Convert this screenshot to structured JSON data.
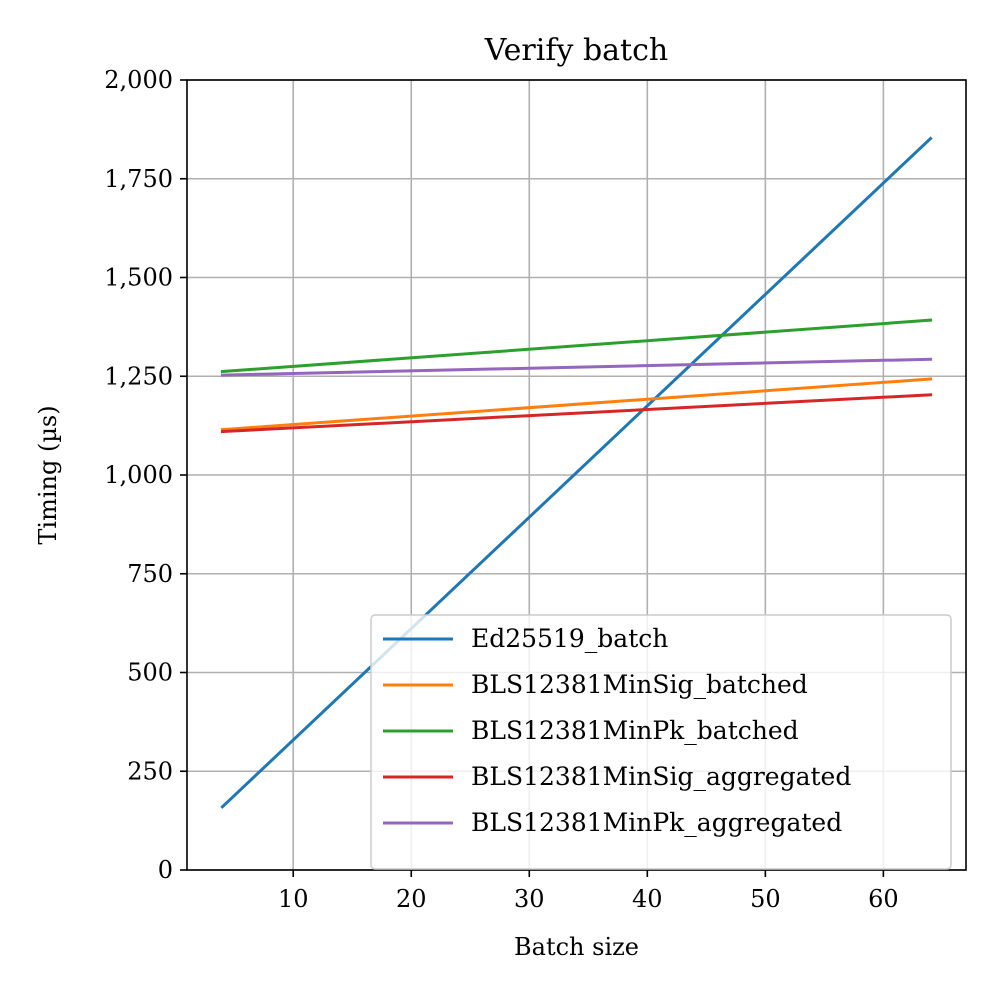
{
  "chart_data": {
    "type": "line",
    "title": "Verify batch",
    "xlabel": "Batch size",
    "ylabel": "Timing (µs)",
    "xlim": [
      1,
      67
    ],
    "ylim": [
      0,
      2000
    ],
    "xticks": [
      10,
      20,
      30,
      40,
      50,
      60
    ],
    "yticks": [
      0,
      250,
      500,
      750,
      1000,
      1250,
      1500,
      1750,
      2000
    ],
    "ytick_labels": [
      "0",
      "250",
      "500",
      "750",
      "1,000",
      "1,250",
      "1,500",
      "1,750",
      "2,000"
    ],
    "grid": true,
    "legend_position": "lower-right",
    "series": [
      {
        "name": "Ed25519_batch",
        "color": "#1f77b4",
        "x": [
          4,
          64
        ],
        "y": [
          160,
          1852
        ]
      },
      {
        "name": "BLS12381MinSig_batched",
        "color": "#ff7f0e",
        "x": [
          4,
          64
        ],
        "y": [
          1115,
          1243
        ]
      },
      {
        "name": "BLS12381MinPk_batched",
        "color": "#2ca02c",
        "x": [
          4,
          64
        ],
        "y": [
          1262,
          1392
        ]
      },
      {
        "name": "BLS12381MinSig_aggregated",
        "color": "#d62728",
        "x": [
          4,
          64
        ],
        "y": [
          1110,
          1203
        ]
      },
      {
        "name": "BLS12381MinPk_aggregated",
        "color": "#9467bd",
        "x": [
          4,
          64
        ],
        "y": [
          1253,
          1293
        ]
      }
    ]
  }
}
